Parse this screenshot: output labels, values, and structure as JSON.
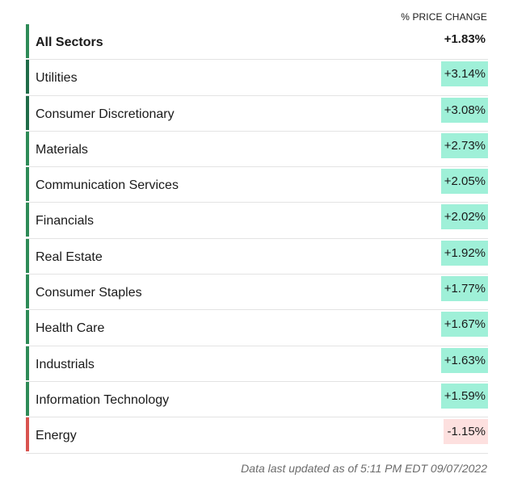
{
  "header": {
    "column_label": "% PRICE CHANGE"
  },
  "colors": {
    "accent_green": "#2e8b57",
    "accent_green_dark": "#1f6b48",
    "accent_red": "#d9534f",
    "positive_bg": "#9ff0d8",
    "negative_bg": "#fde0df"
  },
  "rows": [
    {
      "name": "All Sectors",
      "value": "+1.83%",
      "kind": "total"
    },
    {
      "name": "Utilities",
      "value": "+3.14%",
      "kind": "pos"
    },
    {
      "name": "Consumer Discretionary",
      "value": "+3.08%",
      "kind": "pos"
    },
    {
      "name": "Materials",
      "value": "+2.73%",
      "kind": "pos"
    },
    {
      "name": "Communication Services",
      "value": "+2.05%",
      "kind": "pos"
    },
    {
      "name": "Financials",
      "value": "+2.02%",
      "kind": "pos"
    },
    {
      "name": "Real Estate",
      "value": "+1.92%",
      "kind": "pos"
    },
    {
      "name": "Consumer Staples",
      "value": "+1.77%",
      "kind": "pos"
    },
    {
      "name": "Health Care",
      "value": "+1.67%",
      "kind": "pos"
    },
    {
      "name": "Industrials",
      "value": "+1.63%",
      "kind": "pos"
    },
    {
      "name": "Information Technology",
      "value": "+1.59%",
      "kind": "pos"
    },
    {
      "name": "Energy",
      "value": "-1.15%",
      "kind": "neg"
    }
  ],
  "footer": {
    "note": "Data last updated as of 5:11 PM EDT 09/07/2022"
  }
}
